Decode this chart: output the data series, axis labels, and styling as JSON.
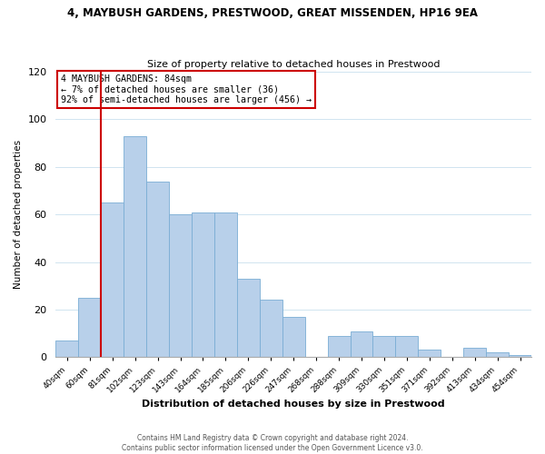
{
  "title": "4, MAYBUSH GARDENS, PRESTWOOD, GREAT MISSENDEN, HP16 9EA",
  "subtitle": "Size of property relative to detached houses in Prestwood",
  "xlabel": "Distribution of detached houses by size in Prestwood",
  "ylabel": "Number of detached properties",
  "bar_labels": [
    "40sqm",
    "60sqm",
    "81sqm",
    "102sqm",
    "123sqm",
    "143sqm",
    "164sqm",
    "185sqm",
    "206sqm",
    "226sqm",
    "247sqm",
    "268sqm",
    "288sqm",
    "309sqm",
    "330sqm",
    "351sqm",
    "371sqm",
    "392sqm",
    "413sqm",
    "434sqm",
    "454sqm"
  ],
  "bar_values": [
    7,
    25,
    65,
    93,
    74,
    60,
    61,
    61,
    33,
    24,
    17,
    0,
    9,
    11,
    9,
    9,
    3,
    0,
    4,
    2,
    1
  ],
  "bar_color": "#b8d0ea",
  "bar_edge_color": "#7aadd4",
  "ylim": [
    0,
    120
  ],
  "yticks": [
    0,
    20,
    40,
    60,
    80,
    100,
    120
  ],
  "vline_color": "#cc0000",
  "annotation_title": "4 MAYBUSH GARDENS: 84sqm",
  "annotation_line1": "← 7% of detached houses are smaller (36)",
  "annotation_line2": "92% of semi-detached houses are larger (456) →",
  "annotation_box_color": "#ffffff",
  "annotation_box_edge": "#cc0000",
  "footer1": "Contains HM Land Registry data © Crown copyright and database right 2024.",
  "footer2": "Contains public sector information licensed under the Open Government Licence v3.0.",
  "grid_color": "#d0e4f0"
}
